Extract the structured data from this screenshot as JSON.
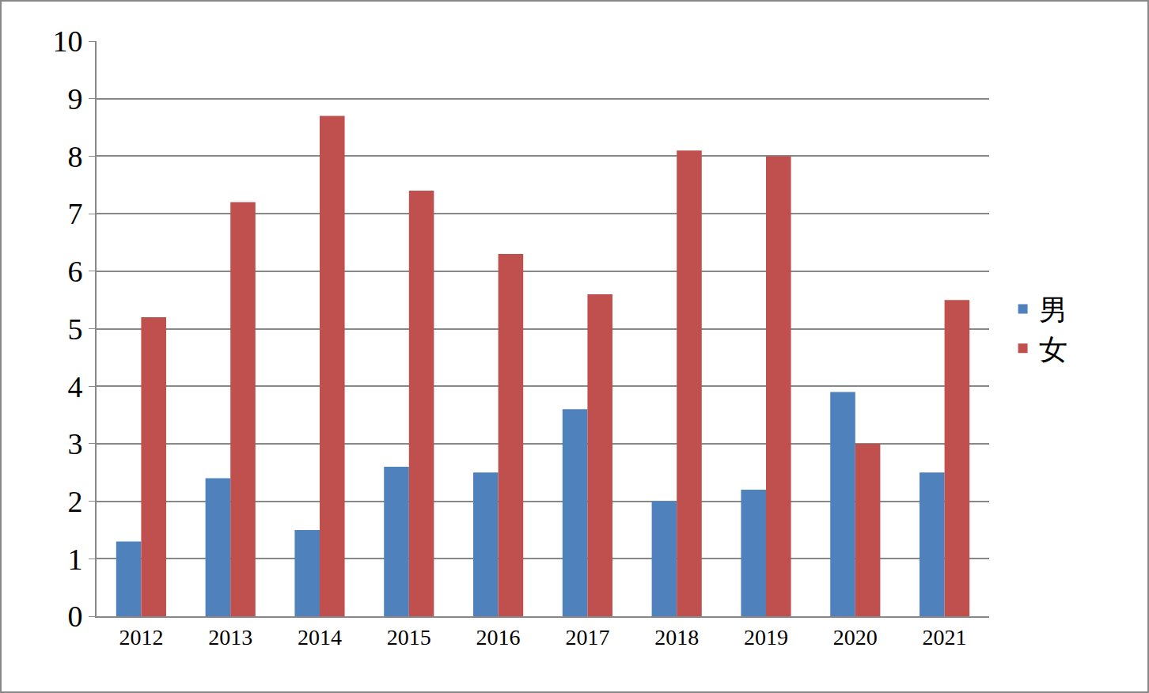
{
  "chart_data": {
    "type": "bar",
    "categories": [
      "2012",
      "2013",
      "2014",
      "2015",
      "2016",
      "2017",
      "2018",
      "2019",
      "2020",
      "2021"
    ],
    "series": [
      {
        "name": "男",
        "color": "#4f81bd",
        "values": [
          1.3,
          2.4,
          1.5,
          2.6,
          2.5,
          3.6,
          2.0,
          2.2,
          3.9,
          2.5
        ]
      },
      {
        "name": "女",
        "color": "#c0504d",
        "values": [
          5.2,
          7.2,
          8.7,
          7.4,
          6.3,
          5.6,
          8.1,
          8.0,
          3.0,
          5.5
        ]
      }
    ],
    "ylim": [
      0,
      10
    ],
    "yticks": [
      0,
      1,
      2,
      3,
      4,
      5,
      6,
      7,
      8,
      9,
      10
    ],
    "grid": true,
    "legend": "right"
  }
}
